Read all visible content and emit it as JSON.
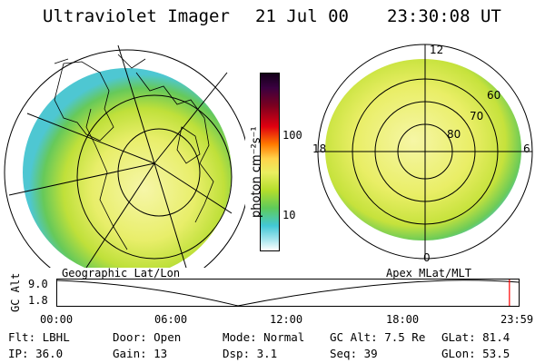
{
  "header": {
    "title": "Ultraviolet Imager",
    "date": "21 Jul 00",
    "time": "23:30:08 UT"
  },
  "colorbar": {
    "label": "photon cm⁻²s⁻¹",
    "tick_100": "100",
    "tick_10": "10"
  },
  "left_panel": {
    "caption": "Geographic Lat/Lon"
  },
  "right_panel": {
    "caption": "Apex MLat/MLT",
    "mlt_12": "12",
    "mlt_18": "18",
    "mlt_6": "6",
    "mlt_0": "0",
    "lat_60": "60",
    "lat_70": "70",
    "lat_80": "80"
  },
  "altitude_plot": {
    "ylabel": "GC Alt",
    "ymax": "9.0",
    "ymin": "1.8",
    "x_ticks": [
      "00:00",
      "06:00",
      "12:00",
      "18:00",
      "23:59"
    ],
    "current_fraction": 0.98
  },
  "info": {
    "row1": {
      "flt": "Flt: LBHL",
      "door": "Door: Open",
      "mode": "Mode: Normal",
      "gcalt": "GC Alt: 7.5 Re",
      "glat": "GLat:  81.4"
    },
    "row2": {
      "ip": "IP: 36.0",
      "gain": "Gain: 13",
      "dsp": "Dsp:    3.1",
      "seq": "Seq: 39",
      "glon": "GLon:  53.5"
    }
  },
  "colors": {
    "aurora_core": "#f3f49a",
    "aurora_mid": "#c9e33a",
    "aurora_edge": "#5cc85a",
    "aurora_fringe": "#4bd0d8",
    "marker": "#ff0000"
  }
}
